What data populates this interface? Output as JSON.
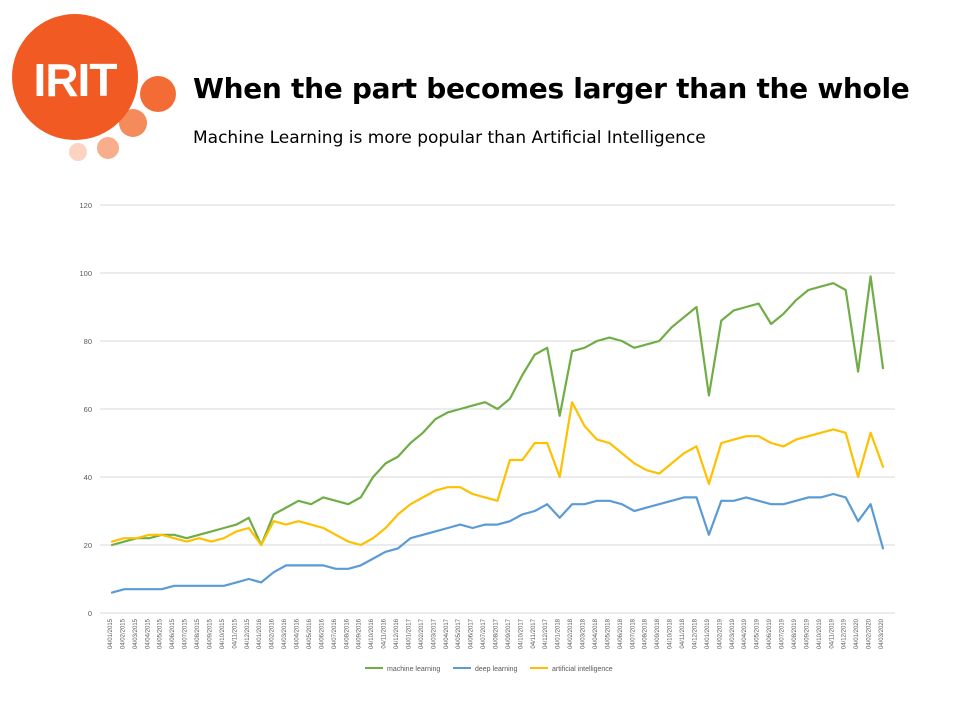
{
  "slide": {
    "logo_text": "IRIT",
    "title": "When the part becomes larger than the whole",
    "subtitle": "Machine Learning is more popular than Artificial Intelligence"
  },
  "colors": {
    "logo_orange": "#f15a22",
    "machine_learning": "#70ad47",
    "deep_learning": "#5b9bd5",
    "artificial_intelligence": "#ffc000",
    "grid": "#d9d9d9",
    "tick_text": "#595959"
  },
  "chart_data": {
    "type": "line",
    "title": "",
    "xlabel": "",
    "ylabel": "",
    "ylim": [
      0,
      120
    ],
    "yticks": [
      0,
      20,
      40,
      60,
      80,
      100,
      120
    ],
    "grid": true,
    "legend_position": "bottom",
    "x_period": "weekly, 04/01/2015 to 03/2020",
    "x": [
      "04/01/2015",
      "04/02/2015",
      "04/03/2015",
      "04/04/2015",
      "04/05/2015",
      "04/06/2015",
      "04/07/2015",
      "04/08/2015",
      "04/09/2015",
      "04/10/2015",
      "04/11/2015",
      "04/12/2015",
      "04/01/2016",
      "04/02/2016",
      "04/03/2016",
      "04/04/2016",
      "04/05/2016",
      "04/06/2016",
      "04/07/2016",
      "04/08/2016",
      "04/09/2016",
      "04/10/2016",
      "04/11/2016",
      "04/12/2016",
      "04/01/2017",
      "04/02/2017",
      "04/03/2017",
      "04/04/2017",
      "04/05/2017",
      "04/06/2017",
      "04/07/2017",
      "04/08/2017",
      "04/09/2017",
      "04/10/2017",
      "04/11/2017",
      "04/12/2017",
      "04/01/2018",
      "04/02/2018",
      "04/03/2018",
      "04/04/2018",
      "04/05/2018",
      "04/06/2018",
      "04/07/2018",
      "04/08/2018",
      "04/09/2018",
      "04/10/2018",
      "04/11/2018",
      "04/12/2018",
      "04/01/2019",
      "04/02/2019",
      "04/03/2019",
      "04/04/2019",
      "04/05/2019",
      "04/06/2019",
      "04/07/2019",
      "04/08/2019",
      "04/09/2019",
      "04/10/2019",
      "04/11/2019",
      "04/12/2019",
      "04/01/2020",
      "04/02/2020",
      "04/03/2020"
    ],
    "series": [
      {
        "name": "machine learning",
        "values": [
          20,
          21,
          22,
          22,
          23,
          23,
          22,
          23,
          24,
          25,
          26,
          28,
          20,
          29,
          31,
          33,
          32,
          34,
          33,
          32,
          34,
          40,
          44,
          46,
          50,
          53,
          57,
          59,
          60,
          61,
          62,
          60,
          63,
          70,
          76,
          78,
          58,
          77,
          78,
          80,
          81,
          80,
          78,
          79,
          80,
          84,
          87,
          90,
          64,
          86,
          89,
          90,
          91,
          85,
          88,
          92,
          95,
          96,
          97,
          95,
          71,
          99,
          72
        ]
      },
      {
        "name": "deep learning",
        "values": [
          6,
          7,
          7,
          7,
          7,
          8,
          8,
          8,
          8,
          8,
          9,
          10,
          9,
          12,
          14,
          14,
          14,
          14,
          13,
          13,
          14,
          16,
          18,
          19,
          22,
          23,
          24,
          25,
          26,
          25,
          26,
          26,
          27,
          29,
          30,
          32,
          28,
          32,
          32,
          33,
          33,
          32,
          30,
          31,
          32,
          33,
          34,
          34,
          23,
          33,
          33,
          34,
          33,
          32,
          32,
          33,
          34,
          34,
          35,
          34,
          27,
          32,
          19
        ]
      },
      {
        "name": "artificial intelligence",
        "values": [
          21,
          22,
          22,
          23,
          23,
          22,
          21,
          22,
          21,
          22,
          24,
          25,
          20,
          27,
          26,
          27,
          26,
          25,
          23,
          21,
          20,
          22,
          25,
          29,
          32,
          34,
          36,
          37,
          37,
          35,
          34,
          33,
          45,
          45,
          50,
          50,
          40,
          62,
          55,
          51,
          50,
          47,
          44,
          42,
          41,
          44,
          47,
          49,
          38,
          50,
          51,
          52,
          52,
          50,
          49,
          51,
          52,
          53,
          54,
          53,
          40,
          53,
          43
        ]
      }
    ]
  }
}
